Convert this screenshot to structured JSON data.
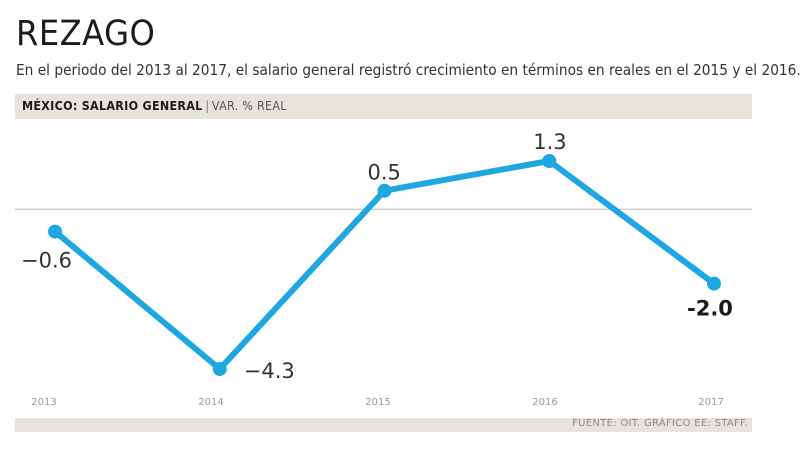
{
  "header": {
    "title": "REZAGO",
    "subtitle": "En el periodo del 2013 al 2017, el salario general registró crecimiento en términos en reales en el 2015 y el 2016.",
    "chart_label": "MÉXICO: SALARIO GENERAL",
    "separator": "|",
    "unit_label": "VAR. % REAL"
  },
  "footer": {
    "source": "FUENTE: OIT. GRÁFICO EE: STAFF."
  },
  "chart_data": {
    "type": "line",
    "title": "MÉXICO: SALARIO GENERAL",
    "ylabel": "VAR. % REAL",
    "xlabel": "",
    "categories": [
      "2013",
      "2014",
      "2015",
      "2016",
      "2017"
    ],
    "series": [
      {
        "name": "Salario general",
        "values": [
          -0.6,
          -4.3,
          0.5,
          1.3,
          -2.0
        ]
      }
    ],
    "value_labels": [
      "−0.6",
      "−4.3",
      "0.5",
      "1.3",
      "-2.0"
    ],
    "highlighted_label": 4,
    "zero_line": true,
    "ylim": [
      -4.3,
      1.3
    ],
    "line_color": "#1ea7e1",
    "grid": false
  }
}
